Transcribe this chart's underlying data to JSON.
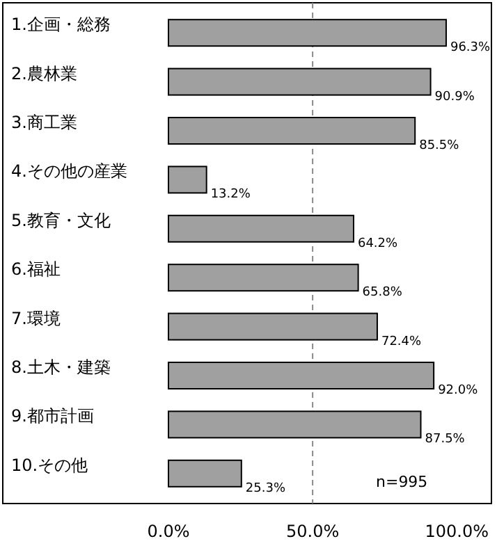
{
  "chart_data": {
    "type": "bar",
    "orientation": "horizontal",
    "categories": [
      "1.企画・総務",
      "2.農林業",
      "3.商工業",
      "4.その他の産業",
      "5.教育・文化",
      "6.福祉",
      "7.環境",
      "8.土木・建築",
      "9.都市計画",
      "10.その他"
    ],
    "values": [
      96.3,
      90.9,
      85.5,
      13.2,
      64.2,
      65.8,
      72.4,
      92.0,
      87.5,
      25.3
    ],
    "value_labels": [
      "96.3%",
      "90.9%",
      "85.5%",
      "13.2%",
      "64.2%",
      "65.8%",
      "72.4%",
      "92.0%",
      "87.5%",
      "25.3%"
    ],
    "color": "#a0a0a0",
    "xlim": [
      0,
      112
    ],
    "xticks": [
      {
        "value": 0,
        "label": "0.0%"
      },
      {
        "value": 50,
        "label": "50.0%"
      },
      {
        "value": 100,
        "label": "100.0%"
      }
    ],
    "ref_lines": [
      {
        "axis": "x",
        "value": 50,
        "label": null,
        "color": "#888888",
        "line_style": "dashed"
      }
    ],
    "annotations": [
      {
        "text": "n=995"
      }
    ]
  }
}
